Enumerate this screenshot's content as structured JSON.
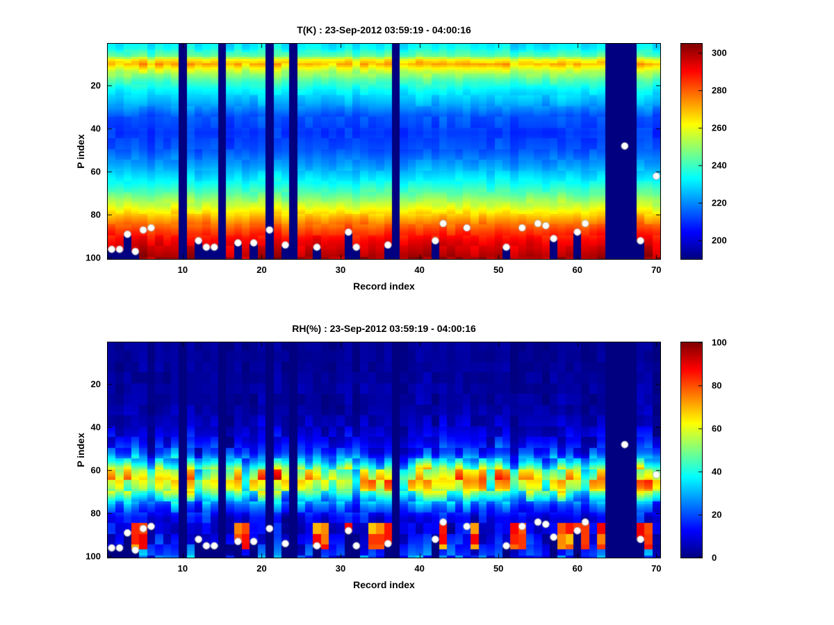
{
  "figure": {
    "background": "#ffffff",
    "text_color": "#000000",
    "missing_data_color": "#00008f",
    "marker_color": "#ffffff"
  },
  "chart_data": [
    {
      "id": "temperature",
      "type": "heatmap",
      "title": "T(K) : 23-Sep-2012 03:59:19 - 04:00:16",
      "xlabel": "Record index",
      "ylabel": "P index",
      "x_range": [
        1,
        70
      ],
      "y_range": [
        1,
        100
      ],
      "y_axis_direction": "down",
      "x_ticks": [
        10,
        20,
        30,
        40,
        50,
        60,
        70
      ],
      "y_ticks": [
        20,
        40,
        60,
        80,
        100
      ],
      "colormap": "jet",
      "color_axis": [
        190,
        305
      ],
      "colorbar_ticks": [
        200,
        220,
        240,
        260,
        280,
        300
      ],
      "vertical_profile": {
        "p": [
          1,
          3,
          6,
          8,
          10,
          13,
          17,
          22,
          28,
          34,
          42,
          50,
          57,
          64,
          70,
          76,
          82,
          87,
          92,
          100
        ],
        "values": [
          231,
          233,
          244,
          262,
          270,
          256,
          243,
          232,
          224,
          214,
          210,
          214,
          222,
          232,
          243,
          257,
          272,
          283,
          291,
          300
        ]
      },
      "noise_profile": {
        "p": [
          1,
          6,
          10,
          14,
          40,
          60,
          80,
          100
        ],
        "amplitude": [
          4,
          4,
          6,
          4,
          3,
          3,
          4,
          5
        ]
      },
      "missing_records": [
        10,
        15,
        21,
        24,
        37,
        64,
        65,
        66,
        67
      ],
      "surface_markers": {
        "style": "white-dot",
        "points": [
          [
            1,
            96
          ],
          [
            2,
            96
          ],
          [
            3,
            89
          ],
          [
            4,
            97
          ],
          [
            5,
            87
          ],
          [
            6,
            86
          ],
          [
            12,
            92
          ],
          [
            13,
            95
          ],
          [
            14,
            95
          ],
          [
            17,
            93
          ],
          [
            19,
            93
          ],
          [
            21,
            87
          ],
          [
            23,
            94
          ],
          [
            27,
            95
          ],
          [
            31,
            88
          ],
          [
            32,
            95
          ],
          [
            36,
            94
          ],
          [
            42,
            92
          ],
          [
            43,
            84
          ],
          [
            46,
            86
          ],
          [
            51,
            95
          ],
          [
            53,
            86
          ],
          [
            55,
            84
          ],
          [
            56,
            85
          ],
          [
            57,
            91
          ],
          [
            60,
            88
          ],
          [
            61,
            84
          ],
          [
            66,
            48
          ],
          [
            68,
            92
          ],
          [
            70,
            62
          ]
        ]
      }
    },
    {
      "id": "relative-humidity",
      "type": "heatmap",
      "title": "RH(%) : 23-Sep-2012 03:59:19 - 04:00:16",
      "xlabel": "Record index",
      "ylabel": "P index",
      "x_range": [
        1,
        70
      ],
      "y_range": [
        1,
        100
      ],
      "y_axis_direction": "down",
      "x_ticks": [
        10,
        20,
        30,
        40,
        50,
        60,
        70
      ],
      "y_ticks": [
        20,
        40,
        60,
        80,
        100
      ],
      "colormap": "jet",
      "color_axis": [
        0,
        100
      ],
      "colorbar_ticks": [
        0,
        20,
        40,
        60,
        80,
        100
      ],
      "vertical_profile": {
        "p": [
          1,
          30,
          40,
          46,
          52,
          56,
          60,
          64,
          68,
          72,
          76,
          82,
          88,
          94,
          100
        ],
        "values": [
          2,
          3,
          6,
          10,
          18,
          32,
          52,
          62,
          55,
          38,
          22,
          10,
          8,
          12,
          18
        ]
      },
      "noise_profile": {
        "p": [
          1,
          35,
          45,
          55,
          60,
          68,
          74,
          80,
          86,
          100
        ],
        "amplitude": [
          2,
          4,
          8,
          14,
          22,
          22,
          14,
          8,
          10,
          14
        ]
      },
      "missing_records": [
        10,
        15,
        21,
        24,
        37,
        64,
        65,
        66,
        67
      ],
      "bottom_moist_patches": {
        "records": [
          4,
          5,
          17,
          18,
          27,
          28,
          31,
          34,
          35,
          36,
          43,
          47,
          52,
          53,
          58,
          59,
          60,
          61,
          63,
          68,
          69
        ],
        "p_range": [
          85,
          96
        ],
        "value": 78
      },
      "surface_markers": {
        "style": "white-dot",
        "points": [
          [
            1,
            96
          ],
          [
            2,
            96
          ],
          [
            3,
            89
          ],
          [
            4,
            97
          ],
          [
            5,
            87
          ],
          [
            6,
            86
          ],
          [
            12,
            92
          ],
          [
            13,
            95
          ],
          [
            14,
            95
          ],
          [
            17,
            93
          ],
          [
            19,
            93
          ],
          [
            21,
            87
          ],
          [
            23,
            94
          ],
          [
            27,
            95
          ],
          [
            31,
            88
          ],
          [
            32,
            95
          ],
          [
            36,
            94
          ],
          [
            42,
            92
          ],
          [
            43,
            84
          ],
          [
            46,
            86
          ],
          [
            51,
            95
          ],
          [
            53,
            86
          ],
          [
            55,
            84
          ],
          [
            56,
            85
          ],
          [
            57,
            91
          ],
          [
            60,
            88
          ],
          [
            61,
            84
          ],
          [
            66,
            48
          ],
          [
            68,
            92
          ],
          [
            70,
            62
          ]
        ]
      }
    }
  ]
}
